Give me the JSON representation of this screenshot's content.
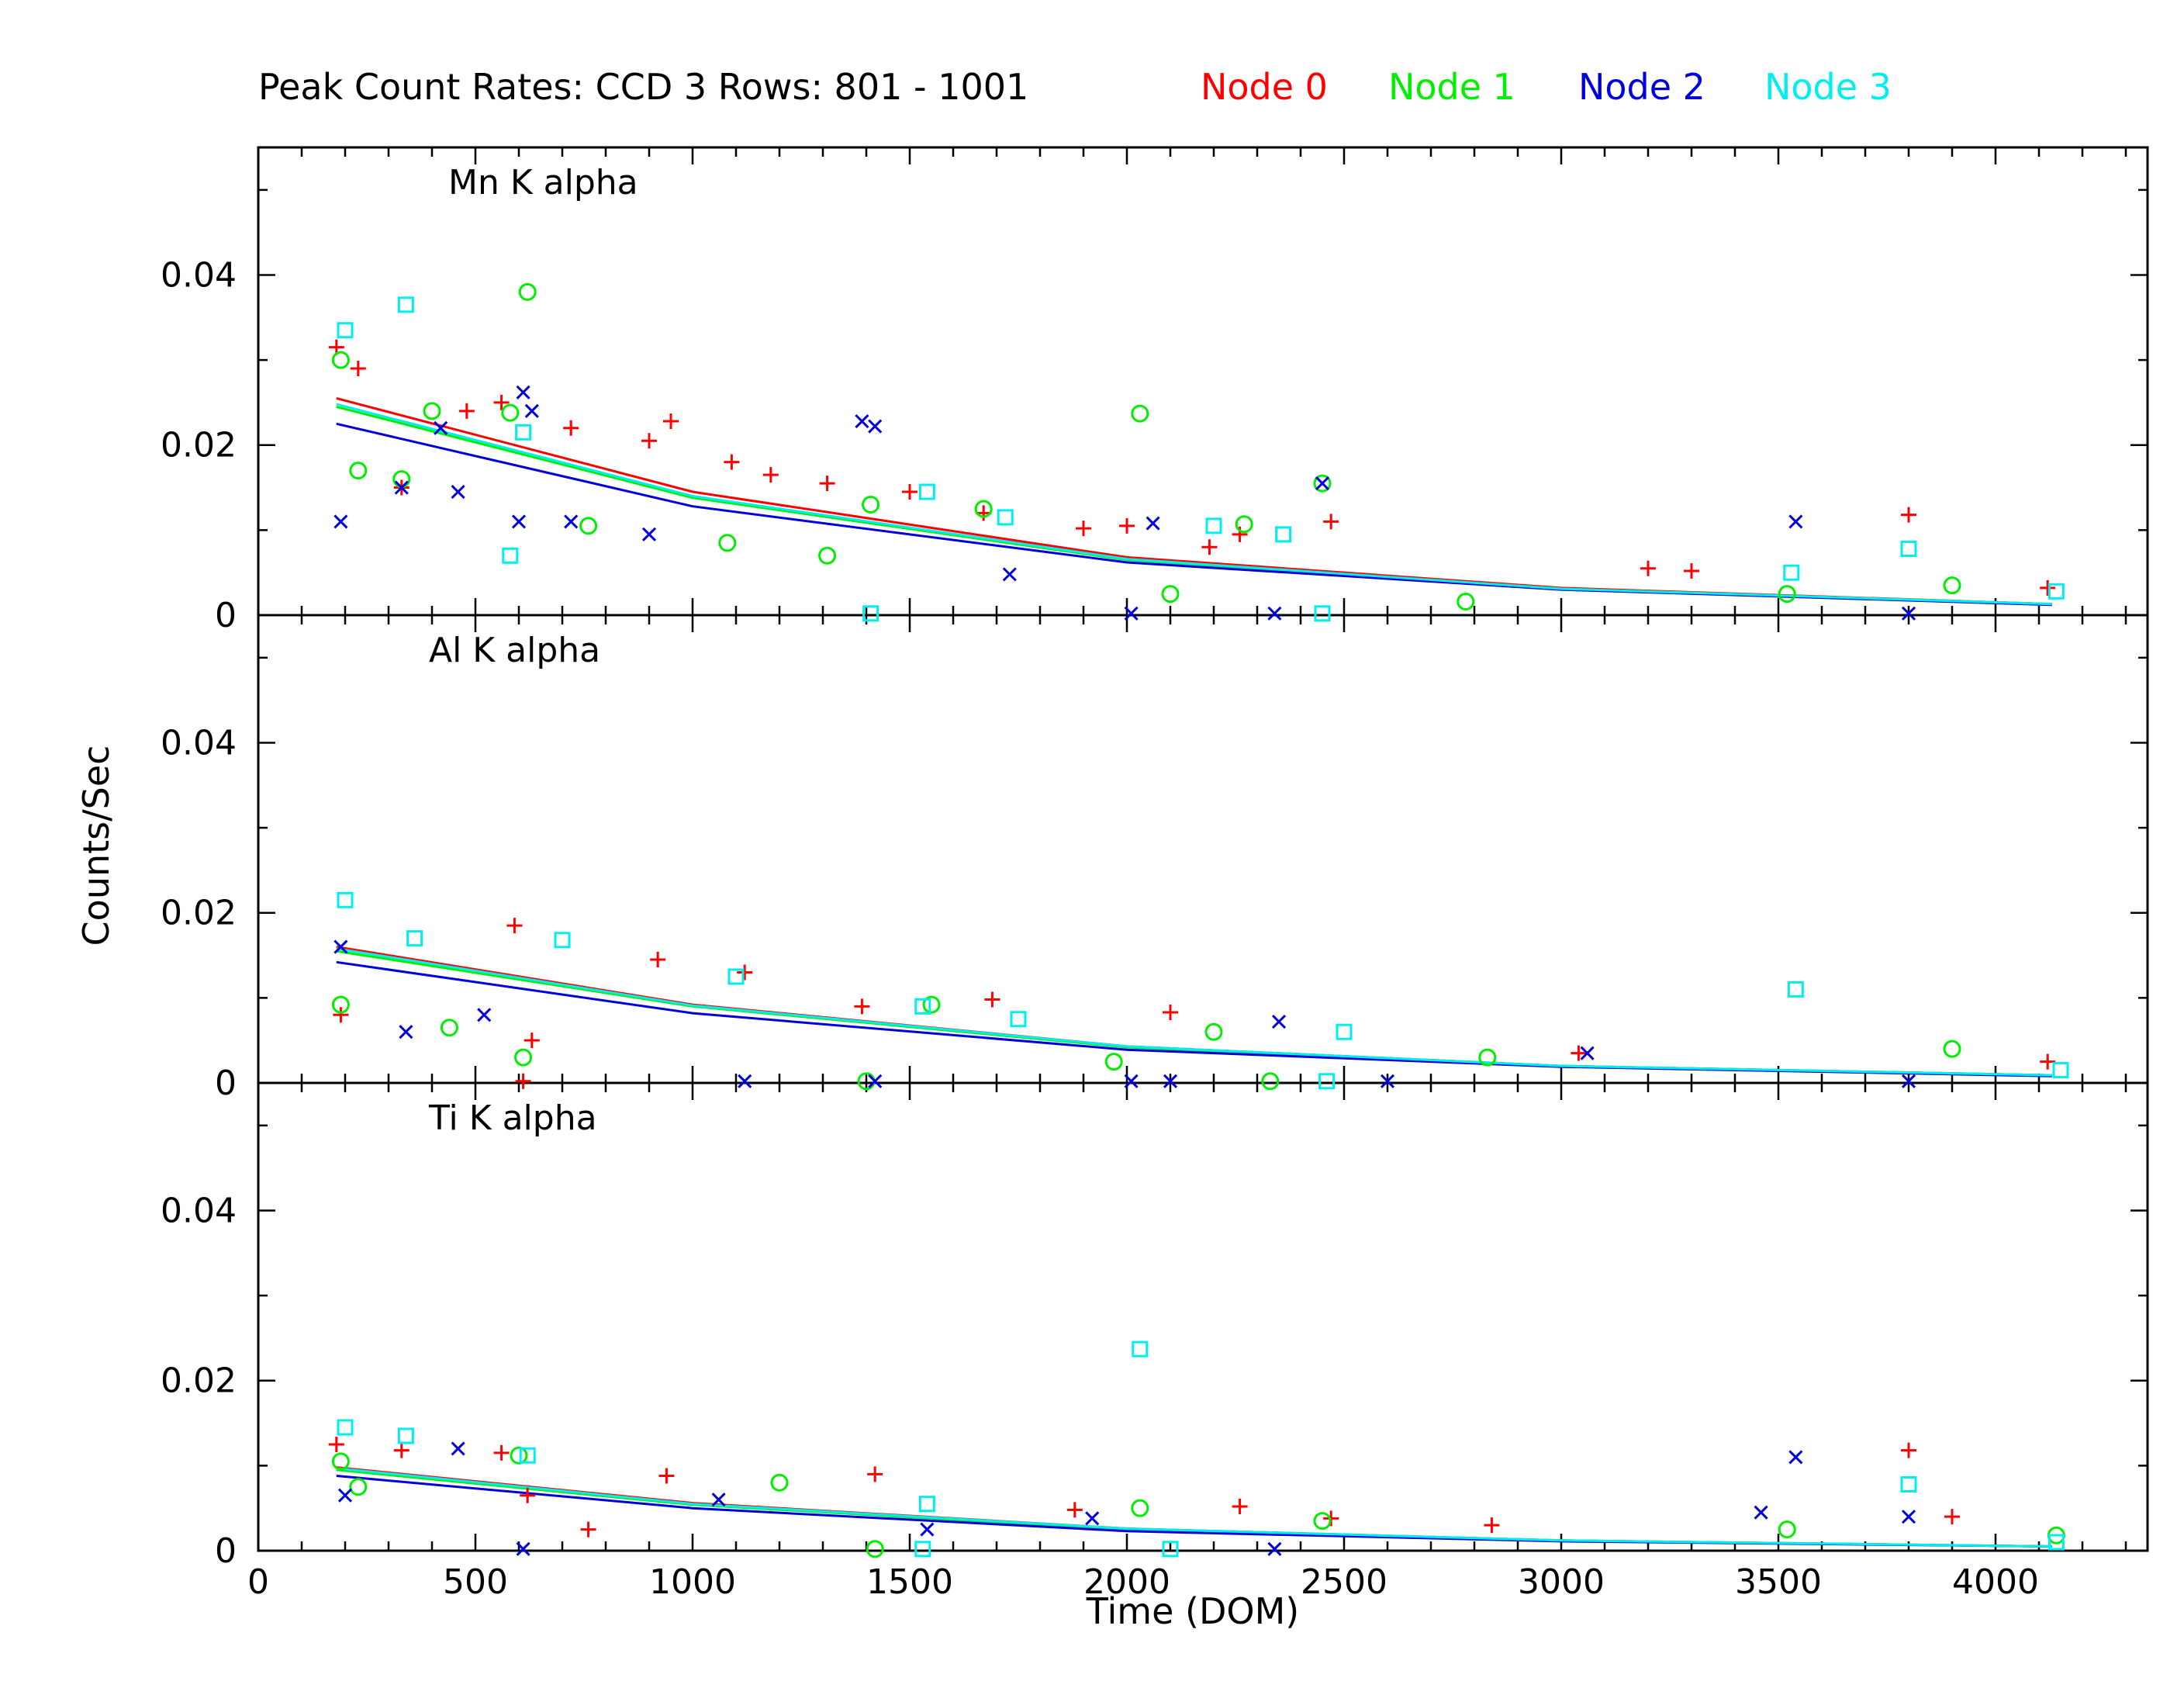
{
  "colors": {
    "node0": "#ff0000",
    "node1": "#00ee00",
    "node2": "#0000dd",
    "node3": "#00eeee",
    "axes": "#000000"
  },
  "chart_data": {
    "type": "scatter",
    "title": "Peak Count Rates: CCD 3 Rows: 801 - 1001",
    "xlabel": "Time (DOM)",
    "ylabel": "Counts/Sec",
    "xlim": [
      0,
      4350
    ],
    "xticks": [
      "0",
      "500",
      "1000",
      "1500",
      "2000",
      "2500",
      "3000",
      "3500",
      "4000"
    ],
    "xtick_values": [
      0,
      500,
      1000,
      1500,
      2000,
      2500,
      3000,
      3500,
      4000
    ],
    "legend": [
      {
        "name": "Node 0",
        "color": "#ff0000",
        "marker": "plus"
      },
      {
        "name": "Node 1",
        "color": "#00ee00",
        "marker": "circle"
      },
      {
        "name": "Node 2",
        "color": "#0000dd",
        "marker": "cross"
      },
      {
        "name": "Node 3",
        "color": "#00eeee",
        "marker": "square"
      }
    ],
    "legend_placement": "top, right of title",
    "grid": false,
    "panels": [
      {
        "name": "Mn K alpha",
        "ylim": [
          0,
          0.055
        ],
        "yticks": [
          "0",
          "0.02",
          "0.04"
        ],
        "ytick_values": [
          0,
          0.02,
          0.04
        ],
        "fits": [
          {
            "node": 0,
            "points": [
              [
                180,
                0.0255
              ],
              [
                1000,
                0.0145
              ],
              [
                2000,
                0.0068
              ],
              [
                3000,
                0.0032
              ],
              [
                4130,
                0.0013
              ]
            ]
          },
          {
            "node": 1,
            "points": [
              [
                180,
                0.0245
              ],
              [
                1000,
                0.0138
              ],
              [
                2000,
                0.0065
              ],
              [
                3000,
                0.0031
              ],
              [
                4130,
                0.0013
              ]
            ]
          },
          {
            "node": 2,
            "points": [
              [
                180,
                0.0225
              ],
              [
                1000,
                0.0128
              ],
              [
                2000,
                0.0062
              ],
              [
                3000,
                0.003
              ],
              [
                4130,
                0.0012
              ]
            ]
          },
          {
            "node": 3,
            "points": [
              [
                180,
                0.0248
              ],
              [
                1000,
                0.014
              ],
              [
                2000,
                0.0066
              ],
              [
                3000,
                0.0031
              ],
              [
                4130,
                0.0013
              ]
            ]
          }
        ],
        "points": {
          "node0": [
            [
              180,
              0.0315
            ],
            [
              230,
              0.029
            ],
            [
              330,
              0.015
            ],
            [
              480,
              0.024
            ],
            [
              560,
              0.025
            ],
            [
              720,
              0.022
            ],
            [
              900,
              0.0205
            ],
            [
              950,
              0.0228
            ],
            [
              1090,
              0.018
            ],
            [
              1180,
              0.0165
            ],
            [
              1310,
              0.0155
            ],
            [
              1500,
              0.0145
            ],
            [
              1670,
              0.012
            ],
            [
              2000,
              0.0105
            ],
            [
              2190,
              0.008
            ],
            [
              2260,
              0.0095
            ],
            [
              2470,
              0.011
            ],
            [
              3200,
              0.0055
            ],
            [
              3300,
              0.0052
            ],
            [
              3800,
              0.0118
            ],
            [
              4120,
              0.0032
            ],
            [
              1900,
              0.0102
            ]
          ],
          "node1": [
            [
              190,
              0.03
            ],
            [
              230,
              0.017
            ],
            [
              330,
              0.016
            ],
            [
              400,
              0.024
            ],
            [
              580,
              0.0238
            ],
            [
              620,
              0.038
            ],
            [
              760,
              0.0105
            ],
            [
              1080,
              0.0085
            ],
            [
              1310,
              0.007
            ],
            [
              1410,
              0.013
            ],
            [
              1670,
              0.0125
            ],
            [
              2030,
              0.0237
            ],
            [
              2100,
              0.0025
            ],
            [
              2270,
              0.0107
            ],
            [
              2450,
              0.0155
            ],
            [
              2780,
              0.0016
            ],
            [
              3520,
              0.0025
            ],
            [
              3900,
              0.0035
            ]
          ],
          "node2": [
            [
              190,
              0.011
            ],
            [
              330,
              0.015
            ],
            [
              420,
              0.022
            ],
            [
              460,
              0.0145
            ],
            [
              600,
              0.011
            ],
            [
              610,
              0.0262
            ],
            [
              630,
              0.024
            ],
            [
              720,
              0.011
            ],
            [
              900,
              0.0095
            ],
            [
              1390,
              0.0228
            ],
            [
              1420,
              0.0222
            ],
            [
              1730,
              0.0048
            ],
            [
              2010,
              0.0002
            ],
            [
              2060,
              0.0108
            ],
            [
              2340,
              0.0002
            ],
            [
              2450,
              0.0155
            ],
            [
              3540,
              0.011
            ],
            [
              3800,
              0.0002
            ]
          ],
          "node3": [
            [
              200,
              0.0335
            ],
            [
              340,
              0.0365
            ],
            [
              580,
              0.007
            ],
            [
              610,
              0.0215
            ],
            [
              1410,
              0.0002
            ],
            [
              1540,
              0.0145
            ],
            [
              1720,
              0.0115
            ],
            [
              2200,
              0.0105
            ],
            [
              2360,
              0.0095
            ],
            [
              2450,
              0.0002
            ],
            [
              3530,
              0.005
            ],
            [
              3800,
              0.0078
            ],
            [
              4140,
              0.0028
            ]
          ]
        }
      },
      {
        "name": "Al K alpha",
        "ylim": [
          0,
          0.055
        ],
        "yticks": [
          "0",
          "0.02",
          "0.04"
        ],
        "ytick_values": [
          0,
          0.02,
          0.04
        ],
        "fits": [
          {
            "node": 0,
            "points": [
              [
                180,
                0.016
              ],
              [
                1000,
                0.0092
              ],
              [
                2000,
                0.0043
              ],
              [
                3000,
                0.002
              ],
              [
                4130,
                0.0009
              ]
            ]
          },
          {
            "node": 1,
            "points": [
              [
                180,
                0.0155
              ],
              [
                1000,
                0.009
              ],
              [
                2000,
                0.0042
              ],
              [
                3000,
                0.002
              ],
              [
                4130,
                0.0009
              ]
            ]
          },
          {
            "node": 2,
            "points": [
              [
                180,
                0.0142
              ],
              [
                1000,
                0.0082
              ],
              [
                2000,
                0.0039
              ],
              [
                3000,
                0.0019
              ],
              [
                4130,
                0.0008
              ]
            ]
          },
          {
            "node": 3,
            "points": [
              [
                180,
                0.0158
              ],
              [
                1000,
                0.0091
              ],
              [
                2000,
                0.0043
              ],
              [
                3000,
                0.002
              ],
              [
                4130,
                0.0009
              ]
            ]
          }
        ],
        "points": {
          "node0": [
            [
              190,
              0.008
            ],
            [
              590,
              0.0185
            ],
            [
              610,
              0.0002
            ],
            [
              630,
              0.005
            ],
            [
              920,
              0.0145
            ],
            [
              1120,
              0.013
            ],
            [
              1390,
              0.009
            ],
            [
              1690,
              0.0098
            ],
            [
              2100,
              0.0083
            ],
            [
              3040,
              0.0035
            ],
            [
              4120,
              0.0025
            ]
          ],
          "node1": [
            [
              190,
              0.0092
            ],
            [
              440,
              0.0065
            ],
            [
              610,
              0.003
            ],
            [
              1400,
              0.0002
            ],
            [
              1550,
              0.0092
            ],
            [
              1970,
              0.0025
            ],
            [
              2200,
              0.006
            ],
            [
              2330,
              0.0002
            ],
            [
              2830,
              0.003
            ],
            [
              3900,
              0.004
            ]
          ],
          "node2": [
            [
              190,
              0.016
            ],
            [
              340,
              0.006
            ],
            [
              520,
              0.008
            ],
            [
              1120,
              0.0002
            ],
            [
              1420,
              0.0002
            ],
            [
              2010,
              0.0002
            ],
            [
              2100,
              0.0002
            ],
            [
              2350,
              0.0072
            ],
            [
              2600,
              0.0002
            ],
            [
              3060,
              0.0035
            ],
            [
              3800,
              0.0002
            ]
          ],
          "node3": [
            [
              200,
              0.0215
            ],
            [
              360,
              0.017
            ],
            [
              700,
              0.0168
            ],
            [
              1100,
              0.0125
            ],
            [
              1530,
              0.009
            ],
            [
              1750,
              0.0075
            ],
            [
              2460,
              0.0002
            ],
            [
              2500,
              0.006
            ],
            [
              3540,
              0.011
            ],
            [
              4150,
              0.0015
            ]
          ]
        }
      },
      {
        "name": "Ti K alpha",
        "ylim": [
          0,
          0.055
        ],
        "yticks": [
          "0",
          "0.02",
          "0.04"
        ],
        "ytick_values": [
          0,
          0.02,
          0.04
        ],
        "fits": [
          {
            "node": 0,
            "points": [
              [
                180,
                0.0098
              ],
              [
                1000,
                0.0056
              ],
              [
                2000,
                0.0026
              ],
              [
                3000,
                0.0012
              ],
              [
                4130,
                0.0005
              ]
            ]
          },
          {
            "node": 1,
            "points": [
              [
                180,
                0.0095
              ],
              [
                1000,
                0.0054
              ],
              [
                2000,
                0.0025
              ],
              [
                3000,
                0.0012
              ],
              [
                4130,
                0.0005
              ]
            ]
          },
          {
            "node": 2,
            "points": [
              [
                180,
                0.0088
              ],
              [
                1000,
                0.005
              ],
              [
                2000,
                0.0023
              ],
              [
                3000,
                0.0011
              ],
              [
                4130,
                0.0005
              ]
            ]
          },
          {
            "node": 3,
            "points": [
              [
                180,
                0.0097
              ],
              [
                1000,
                0.0055
              ],
              [
                2000,
                0.0026
              ],
              [
                3000,
                0.0012
              ],
              [
                4130,
                0.0005
              ]
            ]
          }
        ],
        "points": {
          "node0": [
            [
              180,
              0.0125
            ],
            [
              330,
              0.0118
            ],
            [
              560,
              0.0115
            ],
            [
              620,
              0.0065
            ],
            [
              760,
              0.0025
            ],
            [
              940,
              0.0088
            ],
            [
              1420,
              0.009
            ],
            [
              1880,
              0.0048
            ],
            [
              2260,
              0.0052
            ],
            [
              2470,
              0.0038
            ],
            [
              2840,
              0.003
            ],
            [
              3800,
              0.0118
            ],
            [
              3900,
              0.004
            ]
          ],
          "node1": [
            [
              190,
              0.0105
            ],
            [
              230,
              0.0075
            ],
            [
              600,
              0.0112
            ],
            [
              1200,
              0.008
            ],
            [
              1420,
              0.0002
            ],
            [
              2030,
              0.005
            ],
            [
              2450,
              0.0035
            ],
            [
              3520,
              0.0025
            ],
            [
              4140,
              0.0018
            ]
          ],
          "node2": [
            [
              200,
              0.0065
            ],
            [
              460,
              0.012
            ],
            [
              610,
              0.0002
            ],
            [
              1060,
              0.006
            ],
            [
              1540,
              0.0025
            ],
            [
              1920,
              0.0038
            ],
            [
              2340,
              0.0002
            ],
            [
              3460,
              0.0045
            ],
            [
              3540,
              0.011
            ],
            [
              3800,
              0.004
            ]
          ],
          "node3": [
            [
              200,
              0.0145
            ],
            [
              340,
              0.0135
            ],
            [
              620,
              0.0112
            ],
            [
              1530,
              0.0002
            ],
            [
              1540,
              0.0055
            ],
            [
              2030,
              0.0237
            ],
            [
              2100,
              0.0002
            ],
            [
              3800,
              0.0078
            ],
            [
              4140,
              0.001
            ]
          ]
        }
      }
    ]
  }
}
